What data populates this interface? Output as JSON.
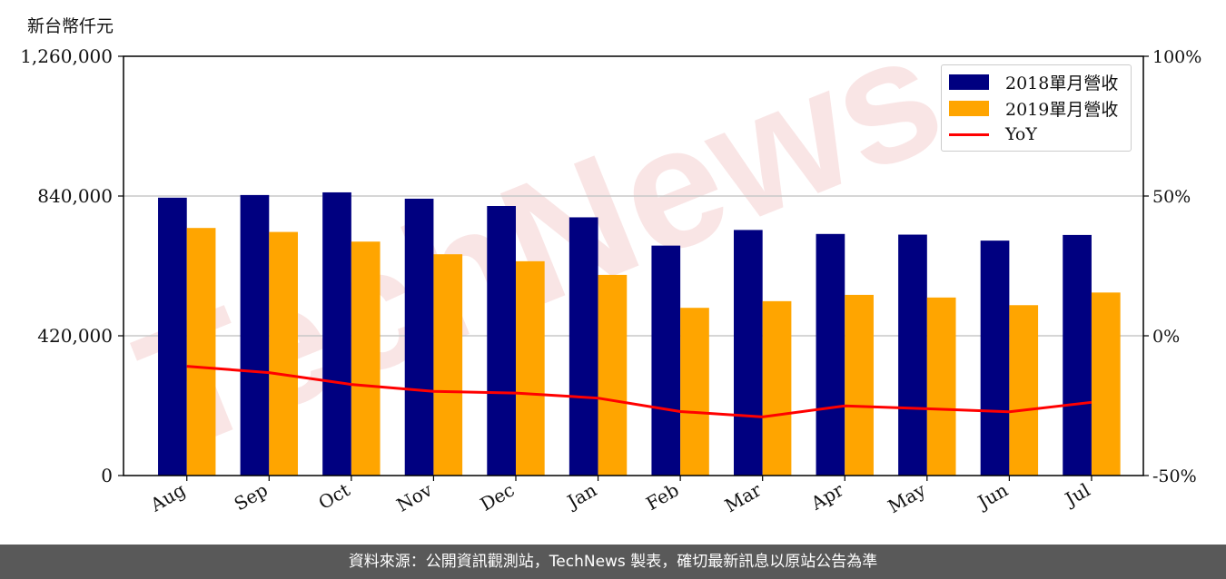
{
  "unit_label": "新台幣仟元",
  "footer": "資料來源：公開資訊觀測站，TechNews 製表，確切最新訊息以原站公告為準",
  "watermark": "TechNews",
  "colors": {
    "bar_2018": "#000080",
    "bar_2019": "#FFA500",
    "yoy_line": "#FF0000",
    "footer_bg": "#595959",
    "watermark": "#E8A0A0"
  },
  "chart_data": {
    "type": "bar",
    "categories": [
      "Aug",
      "Sep",
      "Oct",
      "Nov",
      "Dec",
      "Jan",
      "Feb",
      "Mar",
      "Apr",
      "May",
      "Jun",
      "Jul"
    ],
    "series": [
      {
        "name": "2018單月營收",
        "values": [
          835000,
          843000,
          851000,
          832000,
          810000,
          776000,
          691000,
          738000,
          726000,
          724000,
          706000,
          723000
        ]
      },
      {
        "name": "2019單月營收",
        "values": [
          744000,
          732000,
          703000,
          665000,
          644000,
          603000,
          504000,
          524000,
          543000,
          535000,
          512000,
          550000
        ]
      }
    ],
    "line_series": {
      "name": "YoY",
      "axis": "right",
      "unit": "%",
      "values": [
        -10.9,
        -13.2,
        -17.4,
        -19.9,
        -20.5,
        -22.3,
        -27.1,
        -29.0,
        -25.1,
        -26.1,
        -27.2,
        -23.8
      ]
    },
    "y_left": {
      "ylim": [
        0,
        1260000
      ],
      "ticks": [
        0,
        420000,
        840000,
        1260000
      ],
      "tick_labels": [
        "0",
        "420,000",
        "840,000",
        "1,260,000"
      ]
    },
    "y_right": {
      "ylim": [
        -50,
        100
      ],
      "ticks": [
        -50,
        0,
        50,
        100
      ],
      "tick_labels": [
        "-50%",
        "0%",
        "50%",
        "100%"
      ]
    },
    "grid": "horizontal",
    "legend_position": "top-right"
  }
}
